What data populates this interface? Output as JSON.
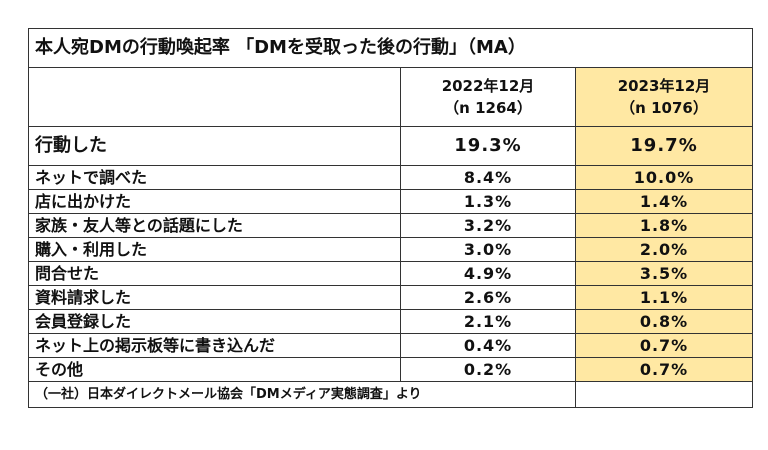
{
  "title": "本人宛DMの行動喚起率 「DMを受取った後の行動」（MA）",
  "columns": [
    {
      "period": "2022年12月",
      "n": "（n 1264）"
    },
    {
      "period": "2023年12月",
      "n": "（n 1076）"
    }
  ],
  "rows": [
    [
      "行動した",
      "19.3%",
      "19.7%"
    ],
    [
      "ネットで調べた",
      "8.4%",
      "10.0%"
    ],
    [
      "店に出かけた",
      "1.3%",
      "1.4%"
    ],
    [
      "家族・友人等との話題にした",
      "3.2%",
      "1.8%"
    ],
    [
      "購入・利用した",
      "3.0%",
      "2.0%"
    ],
    [
      "問合せた",
      "4.9%",
      "3.5%"
    ],
    [
      "資料請求した",
      "2.6%",
      "1.1%"
    ],
    [
      "会員登録した",
      "2.1%",
      "0.8%"
    ],
    [
      "ネット上の掲示板等に書き込んだ",
      "0.4%",
      "0.7%"
    ],
    [
      "その他",
      "0.2%",
      "0.7%"
    ]
  ],
  "source": "（一社）日本ダイレクトメール協会「DMメディア実態調査」より"
}
